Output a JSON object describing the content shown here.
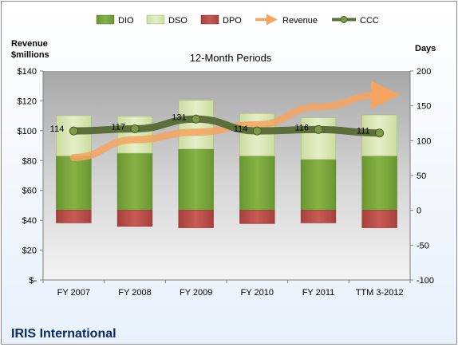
{
  "chart_data": {
    "type": "bar",
    "title": "12-Month Periods",
    "company": "IRIS International",
    "y_left_label_line1": "Revenue",
    "y_left_label_line2": "$millions",
    "y_right_label": "Days",
    "categories": [
      "FY 2007",
      "FY 2008",
      "FY 2009",
      "FY 2010",
      "FY 2011",
      "TTM 3-2012"
    ],
    "left_axis": {
      "ylim": [
        0,
        140
      ],
      "ticks": [
        0,
        20,
        40,
        60,
        80,
        100,
        120,
        140
      ],
      "tick_labels": [
        "$-",
        "$20",
        "$40",
        "$60",
        "$80",
        "$100",
        "$120",
        "$140"
      ]
    },
    "right_axis": {
      "ylim": [
        -100,
        200
      ],
      "ticks": [
        -100,
        -50,
        0,
        50,
        100,
        150,
        200
      ],
      "tick_labels": [
        "-100",
        "-50",
        "0",
        "50",
        "100",
        "150",
        "200"
      ]
    },
    "series": [
      {
        "name": "DIO",
        "axis": "right",
        "type": "stacked-bar",
        "color": "#76a13a",
        "values": [
          78,
          82,
          88,
          78,
          73,
          78
        ]
      },
      {
        "name": "DSO",
        "axis": "right",
        "type": "stacked-bar",
        "color": "#d7e4b0",
        "values": [
          58,
          53,
          70,
          61,
          60,
          59
        ]
      },
      {
        "name": "DPO",
        "axis": "right",
        "type": "negative-bar",
        "color": "#c0504d",
        "values": [
          -18,
          -23,
          -25,
          -19,
          -18,
          -25
        ]
      },
      {
        "name": "Revenue",
        "axis": "left",
        "type": "arrow-line",
        "color": "#f4a460",
        "values": [
          82,
          94,
          99,
          104,
          116,
          124
        ]
      },
      {
        "name": "CCC",
        "axis": "right",
        "type": "line",
        "color": "#5c6e3a",
        "values": [
          114,
          117,
          131,
          114,
          116,
          111
        ],
        "labels": [
          "114",
          "117",
          "131",
          "114",
          "116",
          "111"
        ]
      }
    ],
    "legend_position": "top",
    "grid": false
  }
}
